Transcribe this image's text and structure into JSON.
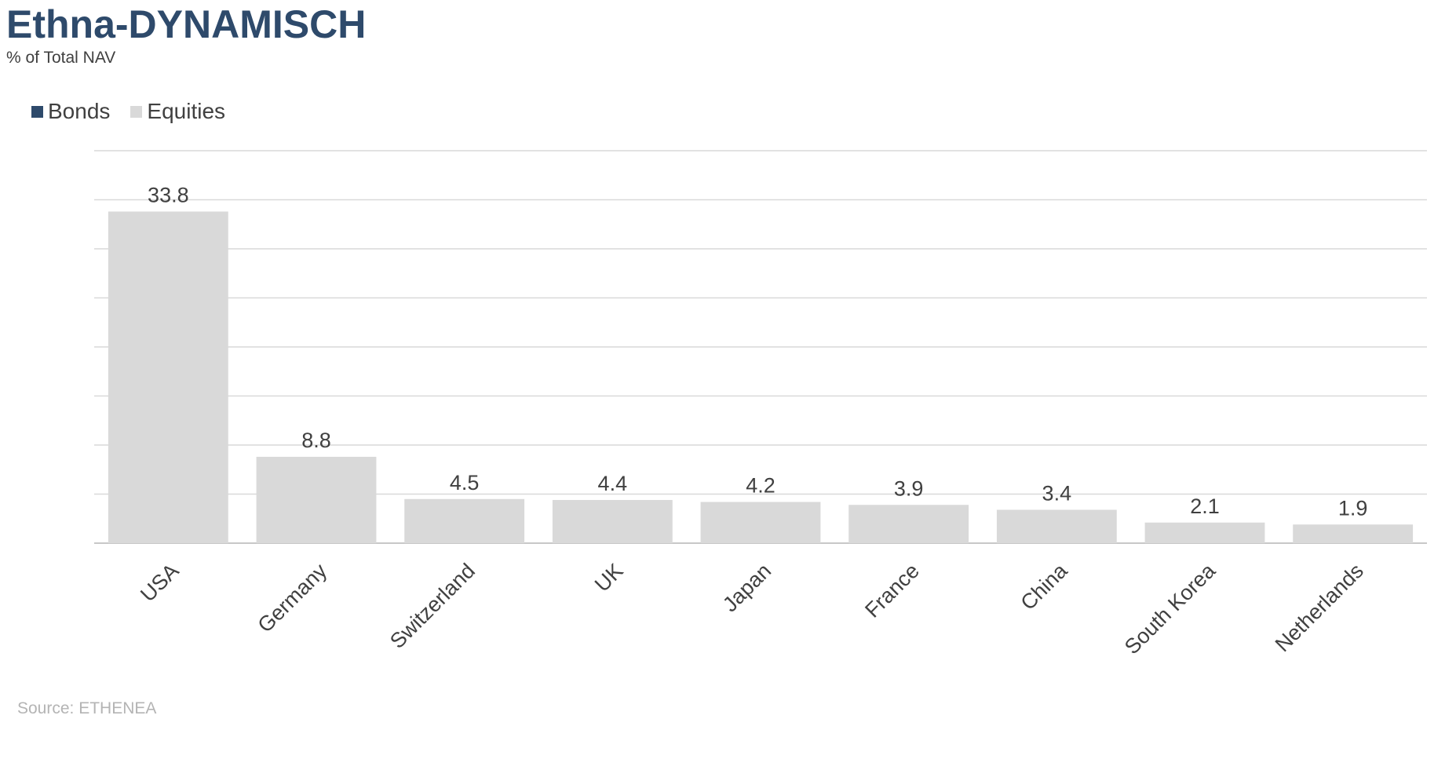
{
  "header": {
    "title": "Ethna-DYNAMISCH",
    "subtitle": "% of Total NAV"
  },
  "legend": {
    "items": [
      {
        "label": "Bonds",
        "color": "#2e4a6b"
      },
      {
        "label": "Equities",
        "color": "#d9d9d9"
      }
    ]
  },
  "source": "Source: ETHENEA",
  "chart_data": {
    "type": "bar",
    "categories": [
      "USA",
      "Germany",
      "Switzerland",
      "UK",
      "Japan",
      "France",
      "China",
      "South Korea",
      "Netherlands"
    ],
    "series": [
      {
        "name": "Bonds",
        "color": "#2e4a6b",
        "values": [
          0,
          0,
          0,
          0,
          0,
          0,
          0,
          0,
          0
        ]
      },
      {
        "name": "Equities",
        "color": "#d9d9d9",
        "values": [
          33.8,
          8.8,
          4.5,
          4.4,
          4.2,
          3.9,
          3.4,
          2.1,
          1.9
        ]
      }
    ],
    "data_labels": [
      "33.8",
      "8.8",
      "4.5",
      "4.4",
      "4.2",
      "3.9",
      "3.4",
      "2.1",
      "1.9"
    ],
    "title": "Ethna-DYNAMISCH",
    "subtitle": "% of Total NAV",
    "xlabel": "",
    "ylabel": "",
    "ylim": [
      0,
      40
    ],
    "grid": true,
    "legend_position": "top-left",
    "stacked": true
  }
}
